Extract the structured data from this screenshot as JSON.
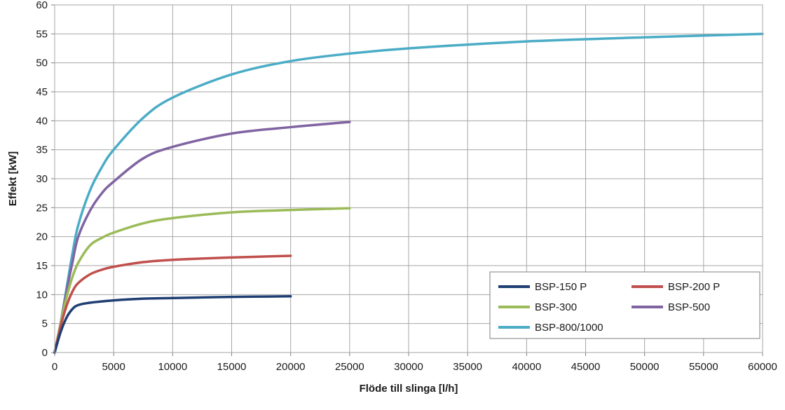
{
  "chart_data": {
    "type": "line",
    "title": "",
    "xlabel": "Flöde till slinga [l/h]",
    "ylabel": "Effekt [kW]",
    "xlim": [
      0,
      60000
    ],
    "ylim": [
      0,
      60
    ],
    "x_ticks": [
      0,
      5000,
      10000,
      15000,
      20000,
      25000,
      30000,
      35000,
      40000,
      45000,
      50000,
      55000,
      60000
    ],
    "y_ticks": [
      0,
      5,
      10,
      15,
      20,
      25,
      30,
      35,
      40,
      45,
      50,
      55,
      60
    ],
    "grid": true,
    "legend_position": "bottom-right",
    "series": [
      {
        "name": "BSP-150 P",
        "color": "#1f3f73",
        "points": [
          [
            0,
            0
          ],
          [
            500,
            3.5
          ],
          [
            1000,
            6
          ],
          [
            1500,
            7.5
          ],
          [
            2000,
            8.2
          ],
          [
            3000,
            8.6
          ],
          [
            5000,
            9.0
          ],
          [
            7500,
            9.3
          ],
          [
            10000,
            9.4
          ],
          [
            15000,
            9.6
          ],
          [
            20000,
            9.7
          ]
        ]
      },
      {
        "name": "BSP-200 P",
        "color": "#c0504d",
        "points": [
          [
            0,
            0
          ],
          [
            500,
            4.5
          ],
          [
            1000,
            8
          ],
          [
            1500,
            10.5
          ],
          [
            2000,
            12
          ],
          [
            3000,
            13.5
          ],
          [
            4000,
            14.3
          ],
          [
            5000,
            14.8
          ],
          [
            7500,
            15.6
          ],
          [
            10000,
            16.0
          ],
          [
            15000,
            16.4
          ],
          [
            20000,
            16.7
          ]
        ]
      },
      {
        "name": "BSP-300",
        "color": "#9bbb59",
        "points": [
          [
            0,
            0
          ],
          [
            500,
            5
          ],
          [
            1000,
            9.5
          ],
          [
            1500,
            13
          ],
          [
            2000,
            15.5
          ],
          [
            3000,
            18.5
          ],
          [
            4000,
            19.8
          ],
          [
            5000,
            20.7
          ],
          [
            7500,
            22.3
          ],
          [
            10000,
            23.2
          ],
          [
            15000,
            24.2
          ],
          [
            20000,
            24.6
          ],
          [
            25000,
            24.9
          ]
        ]
      },
      {
        "name": "BSP-500",
        "color": "#8064a2",
        "points": [
          [
            0,
            0
          ],
          [
            500,
            5
          ],
          [
            1000,
            10.5
          ],
          [
            1500,
            15.5
          ],
          [
            2000,
            20
          ],
          [
            3000,
            24.5
          ],
          [
            4000,
            27.5
          ],
          [
            5000,
            29.5
          ],
          [
            7500,
            33.5
          ],
          [
            10000,
            35.5
          ],
          [
            15000,
            37.8
          ],
          [
            20000,
            38.9
          ],
          [
            25000,
            39.8
          ]
        ]
      },
      {
        "name": "BSP-800/1000",
        "color": "#4bacc6",
        "points": [
          [
            0,
            0
          ],
          [
            500,
            5
          ],
          [
            1000,
            11
          ],
          [
            1500,
            17
          ],
          [
            2000,
            22
          ],
          [
            3000,
            28
          ],
          [
            4000,
            32
          ],
          [
            5000,
            35
          ],
          [
            7500,
            40.5
          ],
          [
            10000,
            44
          ],
          [
            15000,
            48
          ],
          [
            20000,
            50.3
          ],
          [
            25000,
            51.6
          ],
          [
            30000,
            52.5
          ],
          [
            40000,
            53.7
          ],
          [
            50000,
            54.4
          ],
          [
            60000,
            55
          ]
        ]
      }
    ]
  }
}
